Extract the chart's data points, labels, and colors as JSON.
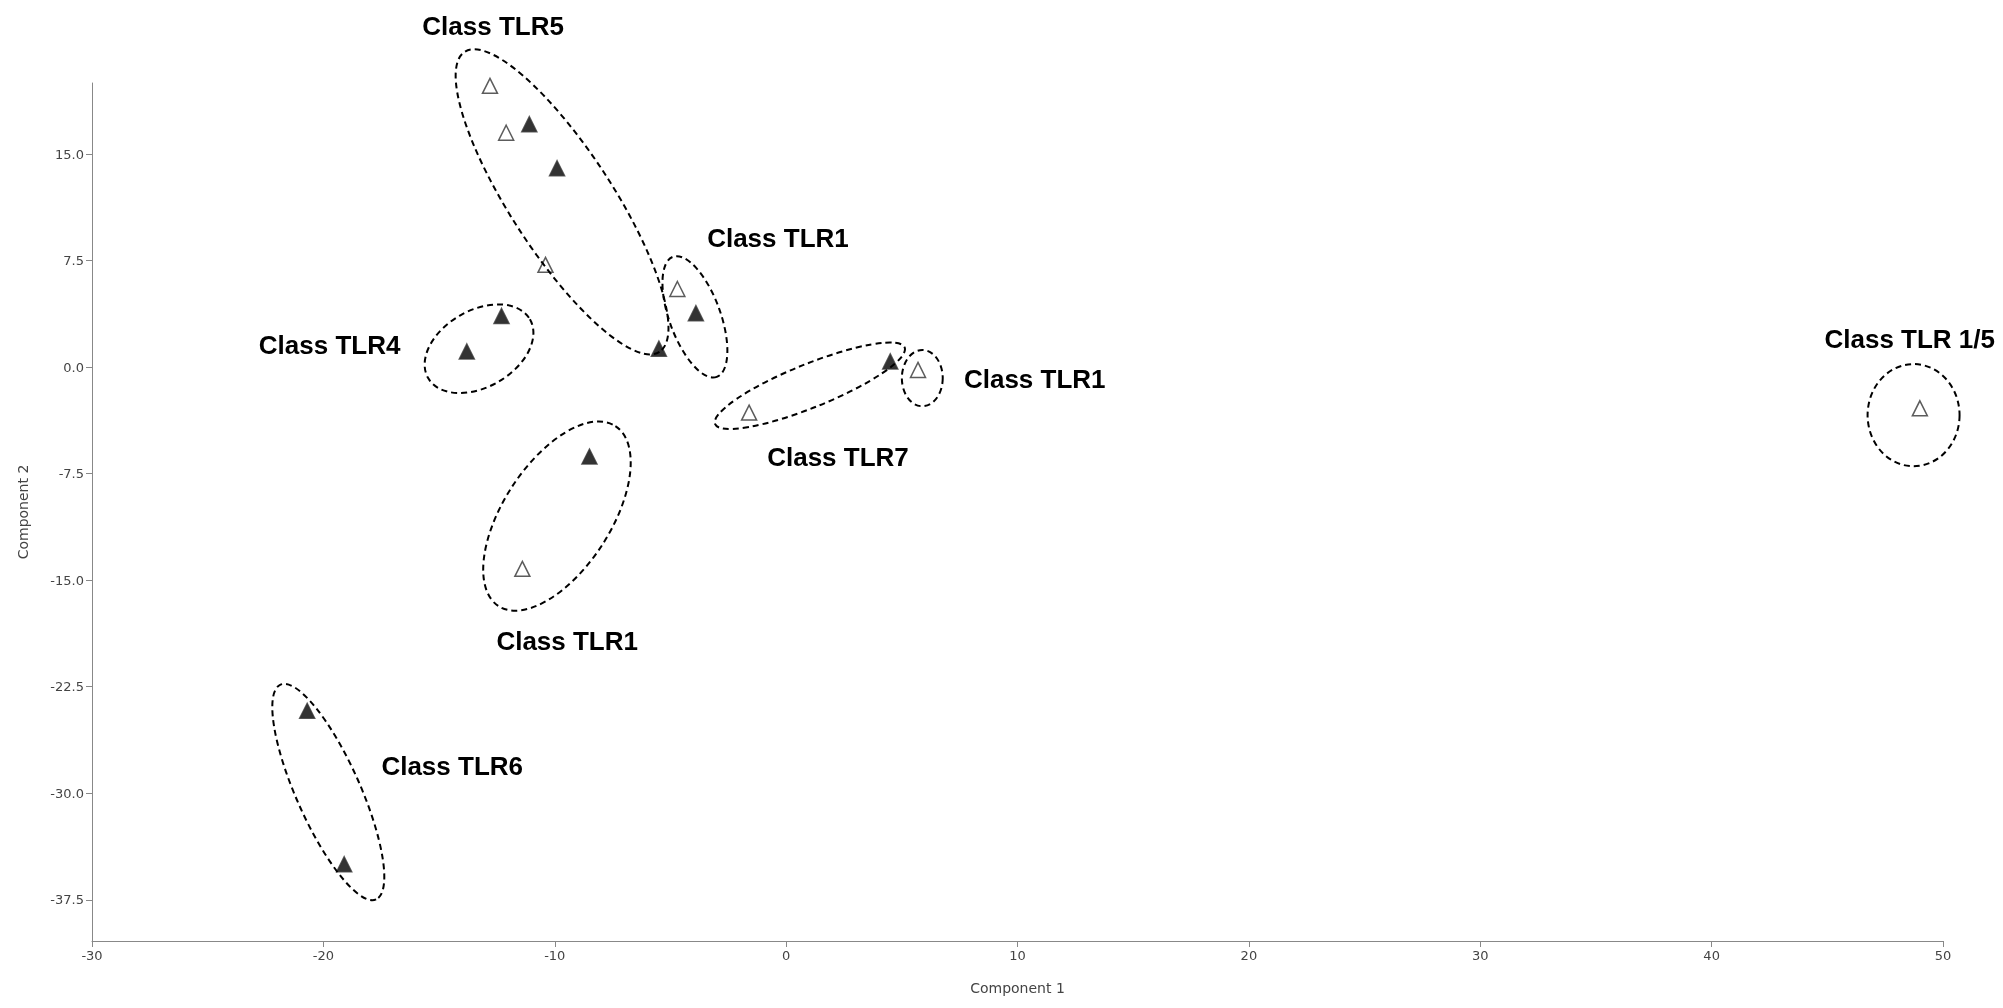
{
  "chart_data": {
    "type": "scatter",
    "xlabel": "Component 1",
    "ylabel": "Component 2",
    "xlim": [
      -30,
      50
    ],
    "xticks": [
      -30,
      -20,
      -10,
      0,
      10,
      20,
      30,
      40,
      50
    ],
    "ylim": [
      -40.4,
      20
    ],
    "yticks": [
      {
        "value": -37.5,
        "label": "-37.5"
      },
      {
        "value": -30,
        "label": "-30.0"
      },
      {
        "value": -22.5,
        "label": "-22.5"
      },
      {
        "value": -15,
        "label": "-15.0"
      },
      {
        "value": -7.5,
        "label": "-7.5"
      },
      {
        "value": 0,
        "label": "0.0"
      },
      {
        "value": 7.5,
        "label": "7.5"
      },
      {
        "value": 15,
        "label": "15.0"
      }
    ],
    "grid": false,
    "marker": "triangle",
    "series": [
      {
        "color": "#000000",
        "x": [
          -11.1,
          -9.9,
          -12.3,
          -13.8,
          -5.5,
          -3.9,
          4.5,
          -8.5,
          -20.7,
          -19.1
        ],
        "values": [
          17.1,
          14.0,
          3.6,
          1.1,
          1.3,
          3.8,
          0.4,
          -6.3,
          -24.2,
          -35.0
        ]
      },
      {
        "color": "#ffffff",
        "x": [
          -12.8,
          -12.1,
          -10.4,
          -4.7,
          5.7,
          -1.6,
          -11.4,
          49.0
        ],
        "values": [
          19.8,
          16.5,
          7.2,
          5.5,
          -0.2,
          -3.2,
          -14.2,
          -2.9
        ]
      }
    ],
    "annotations": [
      "Class TLR5",
      "Class TLR1",
      "Class TLR4",
      "Class TLR1",
      "Class TLR7",
      "Class TLR1",
      "Class TLR6",
      "Class TLR 1/5"
    ]
  }
}
